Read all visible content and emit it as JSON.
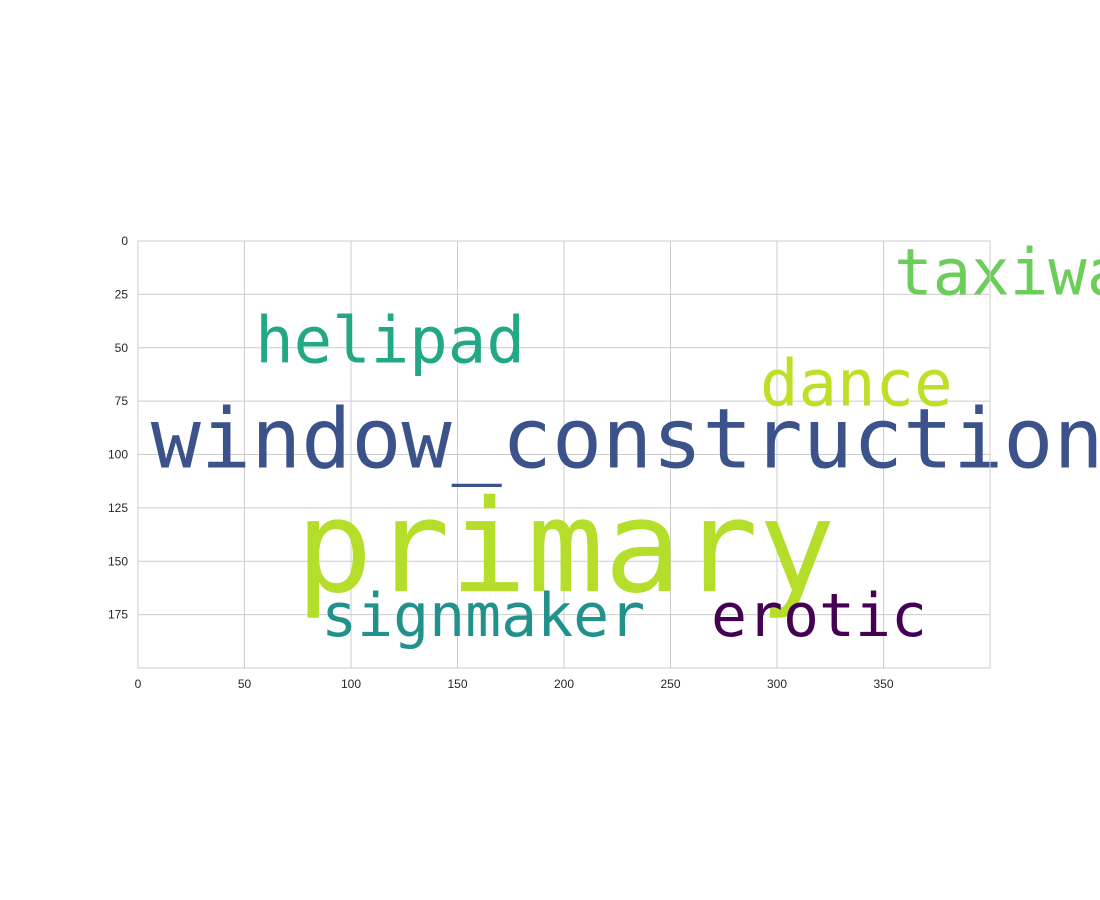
{
  "chart_data": {
    "type": "wordcloud",
    "title": "",
    "xlabel": "",
    "ylabel": "",
    "xlim": [
      0,
      400
    ],
    "ylim": [
      200,
      0
    ],
    "grid": true,
    "xticks": [
      0,
      50,
      100,
      150,
      200,
      250,
      300,
      350
    ],
    "yticks": [
      0,
      25,
      50,
      75,
      100,
      125,
      150,
      175
    ],
    "words": [
      {
        "text": "taxiway",
        "x": 355,
        "y": 25,
        "font_size": 30,
        "color": "#6ccd5a"
      },
      {
        "text": "helipad",
        "x": 55,
        "y": 57,
        "font_size": 30,
        "color": "#22a884"
      },
      {
        "text": "dance",
        "x": 292,
        "y": 77,
        "font_size": 30,
        "color": "#bddf26"
      },
      {
        "text": "window_construction",
        "x": 6,
        "y": 106,
        "font_size": 39,
        "color": "#3b528b"
      },
      {
        "text": "primary",
        "x": 74,
        "y": 164,
        "font_size": 60,
        "color": "#b5de2b"
      },
      {
        "text": "signmaker",
        "x": 86,
        "y": 185,
        "font_size": 28,
        "color": "#21918c"
      },
      {
        "text": "erotic",
        "x": 269,
        "y": 185,
        "font_size": 28,
        "color": "#440154"
      }
    ]
  }
}
